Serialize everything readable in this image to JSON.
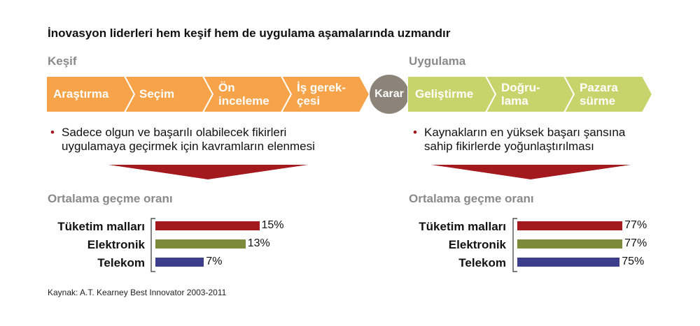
{
  "title": "İnovasyon liderleri hem keşif hem de uygulama aşamalarında uzmandır",
  "discovery": {
    "heading": "Keşif",
    "steps": [
      {
        "line1": "Araştırma",
        "line2": ""
      },
      {
        "line1": "Seçim",
        "line2": ""
      },
      {
        "line1": "Ön",
        "line2": "inceleme"
      },
      {
        "line1": "İş gerek-",
        "line2": "çesi"
      }
    ],
    "bullet": [
      "Sadece olgun ve başarılı olabilecek fikirleri",
      "uygulamaya geçirmek için kavramların elenmesi"
    ],
    "rate_heading": "Ortalama geçme oranı"
  },
  "decision": "Karar",
  "execution": {
    "heading": "Uygulama",
    "steps": [
      {
        "line1": "Geliştirme",
        "line2": ""
      },
      {
        "line1": "Doğru-",
        "line2": "lama"
      },
      {
        "line1": "Pazara",
        "line2": "sürme"
      }
    ],
    "bullet": [
      "Kaynakların en yüksek başarı şansına",
      "sahip fikirlerde yoğunlaştırılması"
    ],
    "rate_heading": "Ortalama geçme oranı"
  },
  "colors": {
    "discovery_chevron": "#f7a349",
    "execution_chevron": "#c6d46b",
    "decision": "#8c8478",
    "funnel": "#a3191e",
    "bar_consumer": "#a3191e",
    "bar_electronics": "#7d8a3a",
    "bar_telecom": "#3c3e8c"
  },
  "chart_data": [
    {
      "type": "bar",
      "orientation": "horizontal",
      "title": "Ortalama geçme oranı",
      "categories": [
        "Tüketim malları",
        "Elektronik",
        "Telekom"
      ],
      "values": [
        15,
        13,
        7
      ],
      "labels": [
        "15%",
        "13%",
        "7%"
      ],
      "unit": "%"
    },
    {
      "type": "bar",
      "orientation": "horizontal",
      "title": "Ortalama geçme oranı",
      "categories": [
        "Tüketim malları",
        "Elektronik",
        "Telekom"
      ],
      "values": [
        77,
        77,
        75
      ],
      "labels": [
        "77%",
        "77%",
        "75%"
      ],
      "unit": "%"
    }
  ],
  "source": "Kaynak: A.T. Kearney Best Innovator 2003-2011"
}
